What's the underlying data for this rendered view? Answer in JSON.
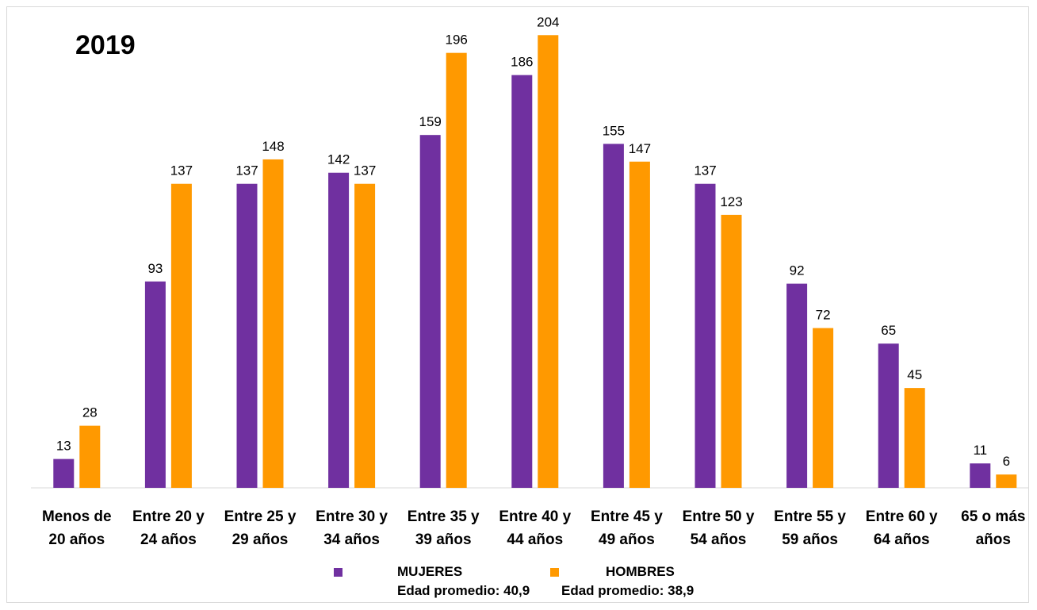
{
  "chart_data": {
    "type": "bar",
    "title": "2019",
    "categories": [
      [
        "Menos de",
        "20 años"
      ],
      [
        "Entre 20 y",
        "24 años"
      ],
      [
        "Entre 25 y",
        "29 años"
      ],
      [
        "Entre 30 y",
        "34 años"
      ],
      [
        "Entre 35 y",
        "39 años"
      ],
      [
        "Entre 40 y",
        "44 años"
      ],
      [
        "Entre 45 y",
        "49 años"
      ],
      [
        "Entre 50 y",
        "54 años"
      ],
      [
        "Entre 55 y",
        "59 años"
      ],
      [
        "Entre 60 y",
        "64 años"
      ],
      [
        "65 o más",
        "años"
      ]
    ],
    "series": [
      {
        "name": "MUJERES",
        "color": "#7030a0",
        "values": [
          13,
          93,
          137,
          142,
          159,
          186,
          155,
          137,
          92,
          65,
          11
        ]
      },
      {
        "name": "HOMBRES",
        "color": "#ff9900",
        "values": [
          28,
          137,
          148,
          137,
          196,
          204,
          147,
          123,
          72,
          45,
          6
        ]
      }
    ],
    "ylim": [
      0,
      210
    ],
    "grid": false,
    "legend_position": "bottom",
    "xlabel": "",
    "ylabel": ""
  },
  "legend": {
    "mujeres_note": "Edad promedio: 40,9",
    "hombres_note": "Edad promedio: 38,9"
  }
}
